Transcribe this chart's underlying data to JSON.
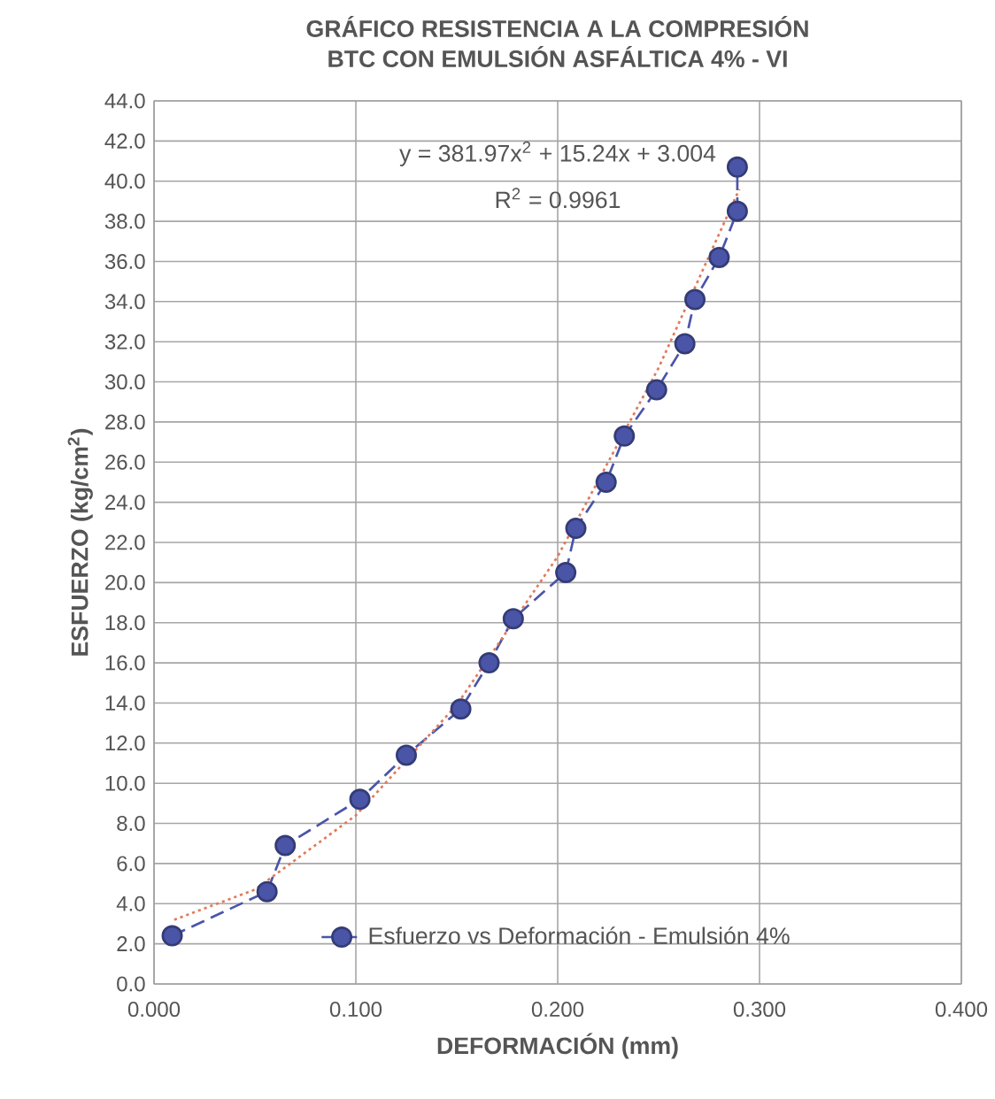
{
  "chart_data": {
    "type": "line",
    "title": "GRÁFICO RESISTENCIA A LA COMPRESIÓN",
    "subtitle": "BTC CON EMULSIÓN ASFÁLTICA 4% - VI",
    "xlabel": "DEFORMACIÓN (mm)",
    "ylabel": "ESFUERZO (kg/cm$^{2}$)",
    "annotations": [
      "y = 381.97x$^{2}$ + 15.24x + 3.004",
      "R$^{2}$ = 0.9961"
    ],
    "series": [
      {
        "name": "Esfuerzo vs Deformación - Emulsión 4%",
        "color": "#4a55a8",
        "marker": "circle",
        "line_style": "dashed",
        "x": [
          0.009,
          0.056,
          0.065,
          0.102,
          0.125,
          0.152,
          0.166,
          0.178,
          0.204,
          0.209,
          0.224,
          0.233,
          0.249,
          0.263,
          0.268,
          0.28,
          0.289,
          0.289
        ],
        "values": [
          2.4,
          4.6,
          6.9,
          9.2,
          11.4,
          13.7,
          16.0,
          18.2,
          20.5,
          22.7,
          25.0,
          27.3,
          29.6,
          31.9,
          34.1,
          36.2,
          38.5,
          40.7
        ]
      },
      {
        "color": "#e07a5a",
        "marker": "none",
        "line_style": "dotted",
        "x": [
          0.01,
          0.05,
          0.1,
          0.15,
          0.2,
          0.25,
          0.29
        ],
        "values": [
          3.2,
          4.7,
          8.4,
          13.9,
          21.3,
          30.7,
          39.6
        ]
      }
    ],
    "xlim": [
      0,
      0.4
    ],
    "ylim": [
      0,
      44
    ],
    "xticks": [
      {
        "value": 0,
        "label": "0.000"
      },
      {
        "value": 0.1,
        "label": "0.100"
      },
      {
        "value": 0.2,
        "label": "0.200"
      },
      {
        "value": 0.3,
        "label": "0.300"
      },
      {
        "value": 0.4,
        "label": "0.400"
      }
    ],
    "yticks": [
      {
        "value": 0,
        "label": "0.0"
      },
      {
        "value": 2,
        "label": "2.0"
      },
      {
        "value": 4,
        "label": "4.0"
      },
      {
        "value": 6,
        "label": "6.0"
      },
      {
        "value": 8,
        "label": "8.0"
      },
      {
        "value": 10,
        "label": "10.0"
      },
      {
        "value": 12,
        "label": "12.0"
      },
      {
        "value": 14,
        "label": "14.0"
      },
      {
        "value": 16,
        "label": "16.0"
      },
      {
        "value": 18,
        "label": "18.0"
      },
      {
        "value": 20,
        "label": "20.0"
      },
      {
        "value": 22,
        "label": "22.0"
      },
      {
        "value": 24,
        "label": "24.0"
      },
      {
        "value": 26,
        "label": "26.0"
      },
      {
        "value": 28,
        "label": "28.0"
      },
      {
        "value": 30,
        "label": "30.0"
      },
      {
        "value": 32,
        "label": "32.0"
      },
      {
        "value": 34,
        "label": "34.0"
      },
      {
        "value": 36,
        "label": "36.0"
      },
      {
        "value": 38,
        "label": "38.0"
      },
      {
        "value": 40,
        "label": "40.0"
      },
      {
        "value": 42,
        "label": "42.0"
      },
      {
        "value": 44,
        "label": "44.0"
      }
    ],
    "grid": true,
    "legend": "bottom"
  }
}
